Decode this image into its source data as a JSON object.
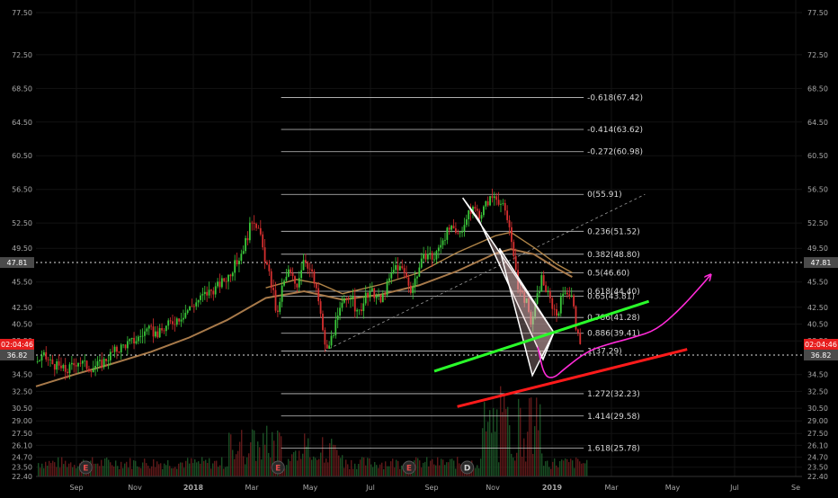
{
  "colors": {
    "background": "#000000",
    "axis_text": "#a8a8a8",
    "grid": "#131313",
    "fib_line": "#c8c8c8",
    "fib_text": "#d8d8d8",
    "candle_up": "#3ac73a",
    "candle_down": "#d62f2f",
    "ma_long": "#a87a4a",
    "ma_short": "#c1914f",
    "price_tag": "#e81e1e",
    "level_tag": "#4a4a4a",
    "green_trend": "#2aff2a",
    "red_trend": "#ff1a1a",
    "projection": "#ff2bd8",
    "wedge_fill": "#e8c0c0",
    "event_badge_text": "#e04b4b",
    "event_badge_d_text": "#d0d0d0"
  },
  "chart_data": {
    "type": "line",
    "ylim": [
      22.4,
      79.0
    ],
    "y_ticks": [
      "77.50",
      "72.50",
      "68.50",
      "64.50",
      "60.50",
      "56.50",
      "52.50",
      "49.50",
      "45.50",
      "42.50",
      "40.50",
      "38.50",
      "34.50",
      "32.50",
      "30.50",
      "29.00",
      "27.50",
      "26.10",
      "24.70",
      "23.50",
      "22.40"
    ],
    "x_ticks": [
      "Sep",
      "Nov",
      "2018",
      "Mar",
      "May",
      "Jul",
      "Sep",
      "Nov",
      "2019",
      "Mar",
      "May",
      "Jul",
      "Se"
    ],
    "price_tags": [
      {
        "label": "47.81",
        "value": 47.81,
        "style": "level"
      },
      {
        "label": "02:04:46",
        "value": 38.1,
        "style": "price"
      },
      {
        "label": "36.82",
        "value": 36.82,
        "style": "level"
      }
    ],
    "horizontal_dotted": [
      47.81,
      36.82
    ],
    "fib_levels": [
      {
        "label": "-0.618(67.42)",
        "value": 67.42
      },
      {
        "label": "-0.414(63.62)",
        "value": 63.62
      },
      {
        "label": "-0.272(60.98)",
        "value": 60.98
      },
      {
        "label": "0(55.91)",
        "value": 55.91
      },
      {
        "label": "0.236(51.52)",
        "value": 51.52
      },
      {
        "label": "0.382(48.80)",
        "value": 48.8
      },
      {
        "label": "0.5(46.60)",
        "value": 46.6
      },
      {
        "label": "0.618(44.40)",
        "value": 44.4
      },
      {
        "label": "0.65(43.81)",
        "value": 43.81
      },
      {
        "label": "0.786(41.28)",
        "value": 41.28
      },
      {
        "label": "0.886(39.41)",
        "value": 39.41
      },
      {
        "label": "1(37.29)",
        "value": 37.29
      },
      {
        "label": "1.272(32.23)",
        "value": 32.23
      },
      {
        "label": "1.414(29.58)",
        "value": 29.58
      },
      {
        "label": "1.618(25.78)",
        "value": 25.78
      }
    ],
    "price_path": [
      [
        0,
        36.0
      ],
      [
        0.01,
        36.6
      ],
      [
        0.025,
        35.6
      ],
      [
        0.04,
        34.9
      ],
      [
        0.055,
        36.2
      ],
      [
        0.07,
        35.3
      ],
      [
        0.085,
        35.8
      ],
      [
        0.1,
        37.1
      ],
      [
        0.115,
        38.0
      ],
      [
        0.13,
        38.6
      ],
      [
        0.145,
        39.8
      ],
      [
        0.16,
        39.3
      ],
      [
        0.175,
        40.6
      ],
      [
        0.19,
        41.5
      ],
      [
        0.205,
        42.8
      ],
      [
        0.22,
        44.0
      ],
      [
        0.235,
        44.8
      ],
      [
        0.25,
        46.1
      ],
      [
        0.265,
        48.3
      ],
      [
        0.275,
        50.6
      ],
      [
        0.283,
        53.2
      ],
      [
        0.29,
        52.0
      ],
      [
        0.297,
        49.0
      ],
      [
        0.305,
        46.0
      ],
      [
        0.31,
        44.2
      ],
      [
        0.315,
        41.0
      ],
      [
        0.32,
        44.5
      ],
      [
        0.33,
        46.8
      ],
      [
        0.34,
        45.0
      ],
      [
        0.35,
        48.6
      ],
      [
        0.36,
        46.5
      ],
      [
        0.37,
        42.8
      ],
      [
        0.375,
        39.0
      ],
      [
        0.38,
        37.3
      ],
      [
        0.39,
        40.1
      ],
      [
        0.4,
        42.8
      ],
      [
        0.41,
        44.2
      ],
      [
        0.42,
        41.5
      ],
      [
        0.43,
        43.6
      ],
      [
        0.44,
        44.3
      ],
      [
        0.45,
        43.1
      ],
      [
        0.46,
        45.5
      ],
      [
        0.47,
        47.5
      ],
      [
        0.48,
        46.8
      ],
      [
        0.49,
        44.5
      ],
      [
        0.5,
        47.2
      ],
      [
        0.51,
        49.0
      ],
      [
        0.52,
        48.2
      ],
      [
        0.53,
        50.6
      ],
      [
        0.54,
        51.8
      ],
      [
        0.55,
        51.0
      ],
      [
        0.56,
        52.6
      ],
      [
        0.57,
        54.3
      ],
      [
        0.58,
        53.5
      ],
      [
        0.59,
        55.1
      ],
      [
        0.6,
        55.91
      ],
      [
        0.61,
        54.3
      ],
      [
        0.62,
        51.5
      ],
      [
        0.625,
        47.0
      ],
      [
        0.63,
        44.8
      ],
      [
        0.64,
        43.2
      ],
      [
        0.645,
        40.5
      ],
      [
        0.65,
        41.8
      ],
      [
        0.66,
        46.0
      ],
      [
        0.67,
        43.5
      ],
      [
        0.68,
        41.6
      ],
      [
        0.69,
        44.8
      ],
      [
        0.7,
        43.6
      ],
      [
        0.705,
        40.2
      ],
      [
        0.71,
        37.6
      ],
      [
        0.713,
        38.4
      ]
    ],
    "ma_long_path": [
      [
        0,
        33.1
      ],
      [
        0.05,
        34.5
      ],
      [
        0.1,
        35.8
      ],
      [
        0.15,
        37.2
      ],
      [
        0.2,
        38.9
      ],
      [
        0.25,
        41.0
      ],
      [
        0.3,
        43.6
      ],
      [
        0.35,
        44.4
      ],
      [
        0.4,
        43.4
      ],
      [
        0.45,
        44.0
      ],
      [
        0.5,
        45.1
      ],
      [
        0.55,
        46.8
      ],
      [
        0.6,
        48.9
      ],
      [
        0.62,
        49.4
      ],
      [
        0.65,
        48.8
      ],
      [
        0.68,
        47.1
      ],
      [
        0.7,
        46.1
      ]
    ],
    "ma_short_path": [
      [
        0.3,
        44.8
      ],
      [
        0.34,
        45.8
      ],
      [
        0.37,
        45.3
      ],
      [
        0.4,
        44.1
      ],
      [
        0.45,
        45.2
      ],
      [
        0.5,
        46.6
      ],
      [
        0.55,
        49.0
      ],
      [
        0.6,
        51.0
      ],
      [
        0.62,
        51.4
      ],
      [
        0.65,
        49.6
      ],
      [
        0.68,
        47.6
      ],
      [
        0.7,
        46.6
      ]
    ],
    "fib_anchor_line": [
      [
        0.376,
        37.29
      ],
      [
        0.795,
        55.91
      ]
    ],
    "green_trendline": [
      [
        0.52,
        34.9
      ],
      [
        0.8,
        43.2
      ]
    ],
    "red_trendline": [
      [
        0.55,
        30.7
      ],
      [
        0.85,
        37.5
      ]
    ],
    "projection_path": [
      [
        0.655,
        37.8
      ],
      [
        0.663,
        34.4
      ],
      [
        0.675,
        34.0
      ],
      [
        0.69,
        35.2
      ],
      [
        0.72,
        37.3
      ],
      [
        0.75,
        38.2
      ],
      [
        0.78,
        38.9
      ],
      [
        0.81,
        39.8
      ],
      [
        0.84,
        42.2
      ],
      [
        0.87,
        45.2
      ],
      [
        0.88,
        46.3
      ]
    ],
    "wedge_polygon": [
      [
        0.557,
        55.5
      ],
      [
        0.676,
        39.5
      ],
      [
        0.662,
        36.3
      ],
      [
        0.578,
        52.9
      ]
    ],
    "wedge_polygon_2": [
      [
        0.605,
        49.5
      ],
      [
        0.676,
        39.5
      ],
      [
        0.648,
        34.4
      ]
    ],
    "event_badges": [
      {
        "label": "E",
        "x": 0.065
      },
      {
        "label": "E",
        "x": 0.316
      },
      {
        "label": "E",
        "x": 0.487
      },
      {
        "label": "D",
        "x": 0.563
      }
    ],
    "volume_bars_note": "volume histogram along bottom"
  }
}
